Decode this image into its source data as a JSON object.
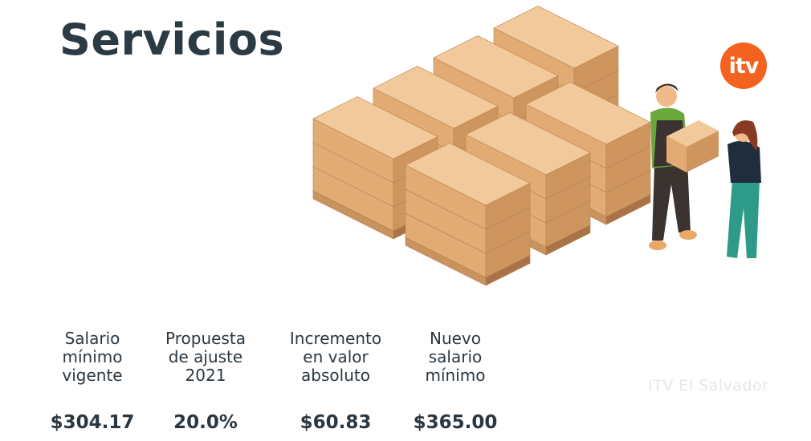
{
  "title": "Servicios",
  "logo": {
    "text": "itv",
    "color": "#f4621f"
  },
  "watermark": "ITV El Salvador",
  "columns": [
    {
      "label": "Salario\nmínimo\nvigente",
      "value": "$304.17"
    },
    {
      "label": "Propuesta\nde ajuste\n2021",
      "value": "20.0%"
    },
    {
      "label": "Incremento\nen valor\nabsoluto",
      "value": "$60.83"
    },
    {
      "label": "Nuevo\nsalario\nmínimo",
      "value": "$365.00"
    }
  ],
  "colors": {
    "text": "#2c3a44",
    "box_top": "#f2c99b",
    "box_left": "#e3ab74",
    "box_right": "#cf955f"
  }
}
